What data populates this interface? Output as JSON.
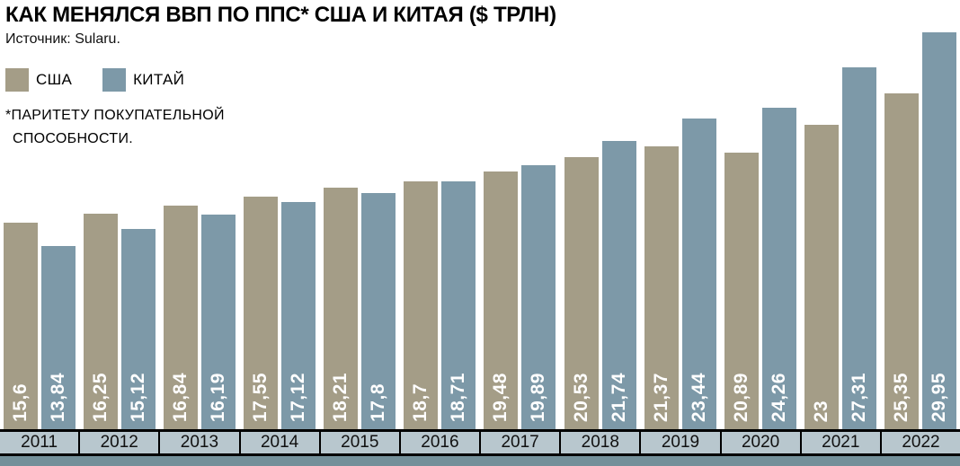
{
  "title": "КАК МЕНЯЛСЯ ВВП ПО ППС* США И КИТАЯ ($ ТРЛН)",
  "source": "Источник: Sularu.",
  "footnote_line1": "*ПАРИТЕТУ ПОКУПАТЕЛЬНОЙ",
  "footnote_line2": "СПОСОБНОСТИ.",
  "colors": {
    "usa_bar": "#a49d87",
    "china_bar": "#7d99a8",
    "axis_band_bg": "#b8c7ce",
    "bottom_strip": "#74909a",
    "value_label_text": "#ffffff",
    "axis_text": "#111111",
    "title_text": "#000000"
  },
  "chart_data": {
    "type": "bar",
    "title": "КАК МЕНЯЛСЯ ВВП ПО ППС* США И КИТАЯ ($ ТРЛН)",
    "source": "Источник: Sularu.",
    "categories": [
      "2011",
      "2012",
      "2013",
      "2014",
      "2015",
      "2016",
      "2017",
      "2018",
      "2019",
      "2020",
      "2021",
      "2022"
    ],
    "series": [
      {
        "key": "usa",
        "name": "США",
        "color": "#a49d87",
        "values": [
          15.6,
          16.25,
          16.84,
          17.55,
          18.21,
          18.7,
          19.48,
          20.53,
          21.37,
          20.89,
          23,
          25.35
        ],
        "labels": [
          "15,6",
          "16,25",
          "16,84",
          "17,55",
          "18,21",
          "18,7",
          "19,48",
          "20,53",
          "21,37",
          "20,89",
          "23",
          "25,35"
        ]
      },
      {
        "key": "china",
        "name": "КИТАЙ",
        "color": "#7d99a8",
        "values": [
          13.84,
          15.12,
          16.19,
          17.12,
          17.8,
          18.71,
          19.89,
          21.74,
          23.44,
          24.26,
          27.31,
          29.95
        ],
        "labels": [
          "13,84",
          "15,12",
          "16,19",
          "17,12",
          "17,8",
          "18,71",
          "19,89",
          "21,74",
          "23,44",
          "24,26",
          "27,31",
          "29,95"
        ]
      }
    ],
    "ylabel": "",
    "xlabel": "",
    "ylim": [
      0,
      30
    ],
    "grid": false,
    "legend_position": "top-left",
    "value_labels": "rotated-90-inside-bottom"
  }
}
